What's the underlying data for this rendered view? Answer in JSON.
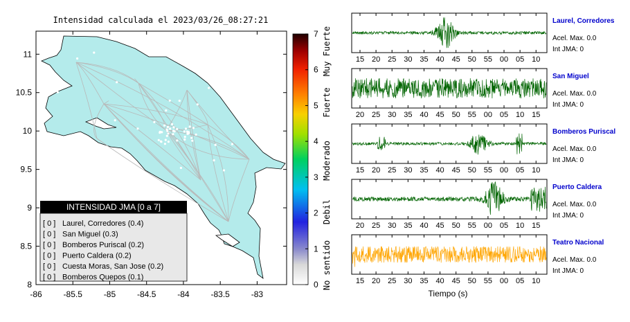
{
  "map": {
    "title": "Intensidad calculada el 2023/03/26_08:27:21",
    "x_ticks": [
      "-86",
      "-85.5",
      "-85",
      "-84.5",
      "-84",
      "-83.5",
      "-83"
    ],
    "y_ticks": [
      "11",
      "10.5",
      "10",
      "9.5",
      "9",
      "8.5",
      "8"
    ],
    "xlim": [
      -86,
      -82.6
    ],
    "ylim": [
      8,
      11.3
    ],
    "land_color": "#b4ebeb",
    "road_color": "#b8b8b8"
  },
  "colorbar": {
    "ticks": [
      "0",
      "1",
      "2",
      "3",
      "4",
      "5",
      "6",
      "7"
    ],
    "categories": [
      "No sentido",
      "Debil",
      "Moderado",
      "Fuerte",
      "Muy Fuerte"
    ]
  },
  "legend": {
    "title": "INTENSIDAD JMA [0 a 7]",
    "items": [
      {
        "jma": "[ 0 ]",
        "station": "Laurel, Corredores (0.4)"
      },
      {
        "jma": "[ 0 ]",
        "station": "San Miguel (0.3)"
      },
      {
        "jma": "[ 0 ]",
        "station": "Bomberos Puriscal (0.2)"
      },
      {
        "jma": "[ 0 ]",
        "station": "Puerto Caldera (0.2)"
      },
      {
        "jma": "[ 0 ]",
        "station": "Cuesta Moras, San Jose (0.2)"
      },
      {
        "jma": "[ 0 ]",
        "station": "Bomberos Quepos (0.1)"
      }
    ]
  },
  "chart_data": {
    "type": "line",
    "xlabel": "Tiempo (s)",
    "traces": [
      {
        "station": "Laurel, Corredores",
        "acel": "Acel. Max. 0.0",
        "jma": "Int JMA: 0",
        "color": "#006400",
        "ticks": [
          "15",
          "20",
          "25",
          "30",
          "35",
          "40",
          "45",
          "50",
          "55",
          "00",
          "05",
          "10"
        ],
        "tick_start": 15,
        "burst_at": 48,
        "burst_amp": 0.9,
        "base_amp": 0.08
      },
      {
        "station": "San Miguel",
        "acel": "Acel. Max. 0.0",
        "jma": "Int JMA: 0",
        "color": "#006400",
        "ticks": [
          "20",
          "25",
          "30",
          "35",
          "40",
          "45",
          "50",
          "55",
          "00",
          "05",
          "10",
          "15"
        ],
        "tick_start": 20,
        "burst_at": null,
        "burst_amp": 0,
        "base_amp": 0.55
      },
      {
        "station": "Bomberos Puriscal",
        "acel": "Acel. Max. 0.0",
        "jma": "Int JMA: 0",
        "color": "#006400",
        "ticks": [
          "15",
          "20",
          "25",
          "30",
          "35",
          "40",
          "45",
          "50",
          "55",
          "00",
          "05",
          "10",
          "15"
        ],
        "tick_start": 13,
        "burst_at": 65,
        "burst_amp": 0.55,
        "base_amp": 0.08
      },
      {
        "station": "Puerto Caldera",
        "acel": "Acel. Max. 0.0",
        "jma": "Int JMA: 0",
        "color": "#006400",
        "ticks": [
          "20",
          "25",
          "30",
          "35",
          "40",
          "45",
          "50",
          "55",
          "00",
          "05",
          "10",
          "15"
        ],
        "tick_start": 18,
        "burst_at": 73,
        "burst_amp": 0.9,
        "base_amp": 0.12
      },
      {
        "station": "Teatro Nacional",
        "acel": "Acel. Max. 0.0",
        "jma": "Int JMA: 0",
        "color": "#ffa500",
        "ticks": [
          "15",
          "20",
          "25",
          "30",
          "35",
          "40",
          "45",
          "50",
          "55",
          "00",
          "05",
          "10"
        ],
        "tick_start": 12,
        "burst_at": null,
        "burst_amp": 0,
        "base_amp": 0.45
      }
    ]
  }
}
